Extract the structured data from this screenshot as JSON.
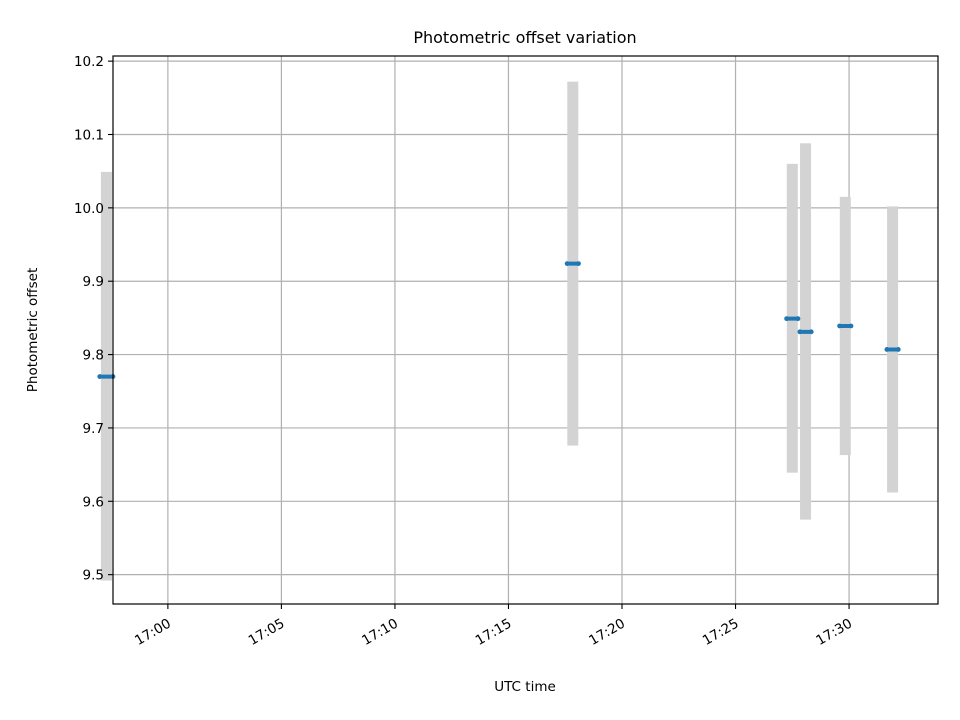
{
  "chart_data": {
    "type": "scatter",
    "title": "Photometric offset variation",
    "xlabel": "UTC time",
    "ylabel": "Photometric offset",
    "x_ticks": [
      "17:00",
      "17:05",
      "17:10",
      "17:15",
      "17:20",
      "17:25",
      "17:30"
    ],
    "y_ticks": [
      "9.5",
      "9.6",
      "9.7",
      "9.8",
      "9.9",
      "10.0",
      "10.1",
      "10.2"
    ],
    "xlim": [
      "16:57:35",
      "17:33:55"
    ],
    "ylim": [
      9.46,
      10.207
    ],
    "grid": true,
    "series": [
      {
        "marker_color": "#1f77b4",
        "errorbar_color": "#d3d3d3",
        "points": [
          {
            "start": "16:57:00",
            "end": "16:57:35",
            "y": 9.77,
            "y_low": 9.492,
            "y_high": 10.049
          },
          {
            "start": "17:17:35",
            "end": "17:18:05",
            "y": 9.924,
            "y_low": 9.676,
            "y_high": 10.172
          },
          {
            "start": "17:27:15",
            "end": "17:27:45",
            "y": 9.849,
            "y_low": 9.639,
            "y_high": 10.06
          },
          {
            "start": "17:27:50",
            "end": "17:28:20",
            "y": 9.831,
            "y_low": 9.575,
            "y_high": 10.088
          },
          {
            "start": "17:29:35",
            "end": "17:30:05",
            "y": 9.839,
            "y_low": 9.663,
            "y_high": 10.015
          },
          {
            "start": "17:31:40",
            "end": "17:32:10",
            "y": 9.807,
            "y_low": 9.612,
            "y_high": 10.002
          }
        ]
      }
    ]
  }
}
